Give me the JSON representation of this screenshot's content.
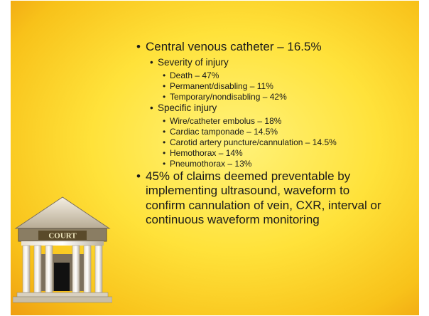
{
  "slide": {
    "icon_label": "COURT",
    "items": [
      {
        "text": "Central venous catheter – 16.5%",
        "children": [
          {
            "text": "Severity of injury",
            "children": [
              {
                "text": "Death – 47%"
              },
              {
                "text": "Permanent/disabling – 11%"
              },
              {
                "text": "Temporary/nondisabling – 42%"
              }
            ]
          },
          {
            "text": "Specific injury",
            "children": [
              {
                "text": "Wire/catheter embolus – 18%"
              },
              {
                "text": "Cardiac tamponade – 14.5%"
              },
              {
                "text": "Carotid artery puncture/cannulation – 14.5%"
              },
              {
                "text": "Hemothorax – 14%"
              },
              {
                "text": "Pneumothorax – 13%"
              }
            ]
          },
          {
            "text": "45% of claims deemed preventable by implementing ultrasound, waveform to confirm cannulation of vein, CXR, interval or continuous waveform monitoring"
          }
        ]
      }
    ]
  }
}
